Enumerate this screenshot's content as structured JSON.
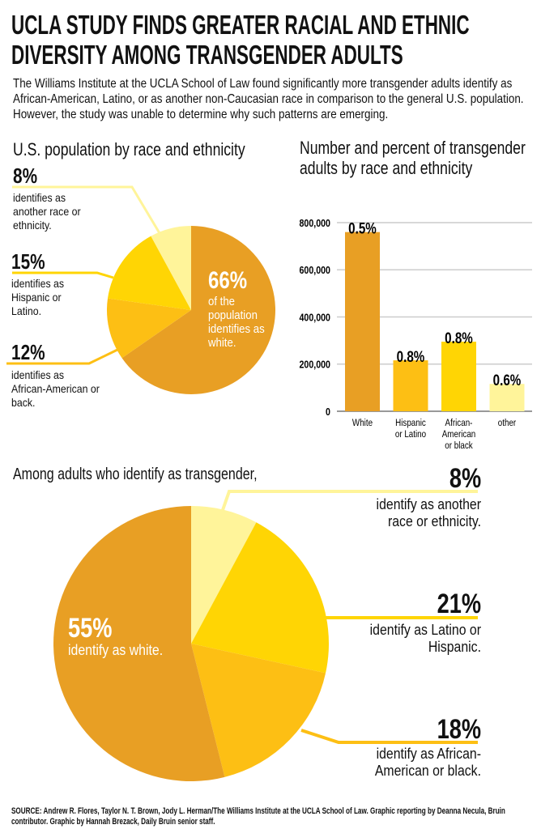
{
  "header": {
    "title_line1": "UCLA STUDY FINDS GREATER RACIAL AND ETHNIC",
    "title_line2": "DIVERSITY AMONG TRANSGENDER ADULTS",
    "intro": "The Williams Institute at the UCLA School of Law found significantly more transgender adults identify as African-American, Latino, or as another non-Caucasian race in comparison to the general U.S. population. However, the study was unable to determine why such patterns are emerging."
  },
  "colors": {
    "white": "#E89F24",
    "hispanic": "#FDBF14",
    "african_american": "#FFD504",
    "other": "#FFF49A",
    "grid": "#cccccc"
  },
  "chart_data": [
    {
      "type": "pie",
      "title": "U.S. population by race and ethnicity",
      "slices": [
        {
          "label": "white",
          "value": 66,
          "pct_text": "66%",
          "desc": "of the population identifies as white.",
          "color_key": "white"
        },
        {
          "label": "African-American or back",
          "value": 12,
          "pct_text": "12%",
          "desc": "identifies as African-American or back.",
          "color_key": "african_american_alt"
        },
        {
          "label": "Hispanic or Latino",
          "value": 15,
          "pct_text": "15%",
          "desc": "identifies as Hispanic or Latino.",
          "color_key": "african_american"
        },
        {
          "label": "another race or ethnicity",
          "value": 8,
          "pct_text": "8%",
          "desc": "identifies as another race or ethnicity.",
          "color_key": "other"
        }
      ]
    },
    {
      "type": "bar",
      "title": "Number and percent of transgender adults by race and ethnicity",
      "categories": [
        "White",
        "Hispanic or Latino",
        "African-American or black",
        "other"
      ],
      "category_lines": [
        [
          "White"
        ],
        [
          "Hispanic",
          "or Latino"
        ],
        [
          "African-",
          "American",
          "or black"
        ],
        [
          "other"
        ]
      ],
      "values": [
        760000,
        216000,
        295000,
        116000
      ],
      "data_labels": [
        "0.5%",
        "0.8%",
        "0.8%",
        "0.6%"
      ],
      "yticks": [
        0,
        200000,
        400000,
        600000,
        800000
      ],
      "ytick_labels": [
        "0",
        "200,000",
        "400,000",
        "600,000",
        "800,000"
      ],
      "ylim": [
        0,
        800000
      ],
      "grid": true
    },
    {
      "type": "pie",
      "title": "Among adults who identify as transgender,",
      "slices": [
        {
          "label": "another race or ethnicity",
          "value": 8,
          "pct_text": "8%",
          "desc": "identify as another race or ethnicity.",
          "color_key": "other"
        },
        {
          "label": "Latino or Hispanic",
          "value": 21,
          "pct_text": "21%",
          "desc": "identify as Latino or Hispanic.",
          "color_key": "african_american"
        },
        {
          "label": "African-American or black",
          "value": 18,
          "pct_text": "18%",
          "desc": "identify as African-American or black.",
          "color_key": "hispanic"
        },
        {
          "label": "white",
          "value": 55,
          "pct_text": "55%",
          "desc": "identify as white.",
          "color_key": "white"
        }
      ]
    }
  ],
  "source": "SOURCE: Andrew R. Flores, Taylor N. T. Brown, Jody L. Herman/The Williams Institute at the UCLA School of Law. Graphic reporting by Deanna Necula, Bruin contributor. Graphic by Hannah Brezack, Daily Bruin senior staff."
}
